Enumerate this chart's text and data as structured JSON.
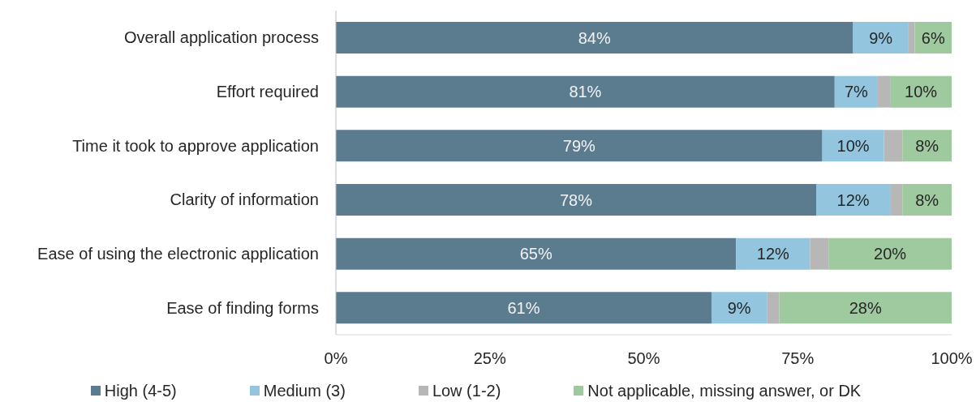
{
  "chart_data": {
    "type": "bar",
    "orientation": "horizontal",
    "stacked": true,
    "categories": [
      "Overall application process",
      "Effort required",
      "Time it took to approve application",
      "Clarity of information",
      "Ease of using the electronic application",
      "Ease of finding forms"
    ],
    "series": [
      {
        "name": "High (4-5)",
        "color": "#5b7b8f",
        "values": [
          84,
          81,
          79,
          78,
          65,
          61
        ],
        "value_labels": [
          "84%",
          "81%",
          "79%",
          "78%",
          "65%",
          "61%"
        ]
      },
      {
        "name": "Medium (3)",
        "color": "#93c5df",
        "values": [
          9,
          7,
          10,
          12,
          12,
          9
        ],
        "value_labels": [
          "9%",
          "7%",
          "10%",
          "12%",
          "12%",
          "9%"
        ]
      },
      {
        "name": "Low (1-2)",
        "color": "#b7b7b7",
        "values": [
          1,
          2,
          3,
          2,
          3,
          2
        ]
      },
      {
        "name": "Not applicable, missing answer, or DK",
        "color": "#9fc99e",
        "values": [
          6,
          10,
          8,
          8,
          20,
          28
        ],
        "value_labels": [
          "6%",
          "10%",
          "8%",
          "8%",
          "20%",
          "28%"
        ]
      }
    ],
    "xlim": [
      0,
      100
    ],
    "xticks": [
      {
        "value": 0,
        "label": "0%"
      },
      {
        "value": 25,
        "label": "25%"
      },
      {
        "value": 50,
        "label": "50%"
      },
      {
        "value": 75,
        "label": "75%"
      },
      {
        "value": 100,
        "label": "100%"
      }
    ],
    "legend": "bottom"
  }
}
